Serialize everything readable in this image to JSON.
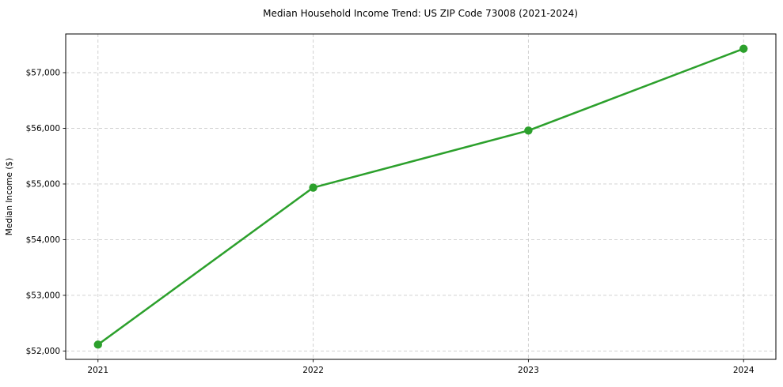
{
  "chart_data": {
    "type": "line",
    "title": "Median Household Income Trend: US ZIP Code 73008 (2021-2024)",
    "xlabel": "",
    "ylabel": "Median Income ($)",
    "x": [
      2021,
      2022,
      2023,
      2024
    ],
    "x_tick_labels": [
      "2021",
      "2022",
      "2023",
      "2024"
    ],
    "y_ticks": [
      52000,
      53000,
      54000,
      55000,
      56000,
      57000
    ],
    "y_tick_labels": [
      "$52,000",
      "$53,000",
      "$54,000",
      "$55,000",
      "$56,000",
      "$57,000"
    ],
    "series": [
      {
        "name": "median_household_income",
        "values": [
          52115,
          54935,
          55960,
          57430
        ],
        "color": "#2ca02c",
        "marker": "circle"
      }
    ],
    "xlim": [
      2020.85,
      2024.15
    ],
    "ylim": [
      51850,
      57695
    ],
    "grid": true,
    "grid_color": "#cccccc",
    "spine_color": "#000000",
    "legend": "none",
    "background_color": "#ffffff"
  }
}
